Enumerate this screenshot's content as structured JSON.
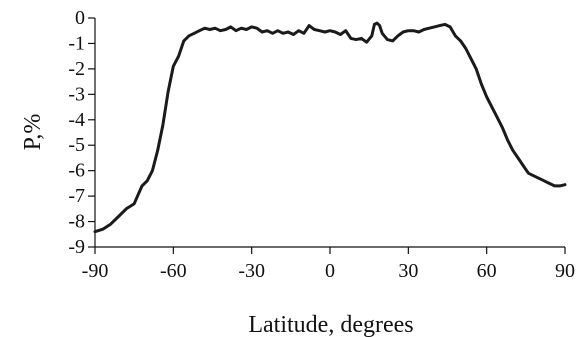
{
  "chart_data": {
    "type": "line",
    "xlabel": "Latitude, degrees",
    "ylabel": "P,%",
    "xlim": [
      -90,
      90
    ],
    "ylim": [
      -9,
      0
    ],
    "xticks": [
      -90,
      -60,
      -30,
      0,
      30,
      60,
      90
    ],
    "yticks": [
      0,
      -1,
      -2,
      -3,
      -4,
      -5,
      -6,
      -7,
      -8,
      -9
    ],
    "grid": false,
    "series": [
      {
        "color": "#1a1a1a",
        "x": [
          -90,
          -87,
          -84,
          -81,
          -78,
          -75,
          -72,
          -70,
          -68,
          -66,
          -64,
          -62,
          -60,
          -58,
          -56,
          -54,
          -52,
          -50,
          -48,
          -46,
          -44,
          -42,
          -40,
          -38,
          -36,
          -34,
          -32,
          -30,
          -28,
          -26,
          -24,
          -22,
          -20,
          -18,
          -16,
          -14,
          -12,
          -10,
          -8,
          -6,
          -4,
          -2,
          0,
          2,
          4,
          6,
          8,
          10,
          12,
          14,
          16,
          17,
          18,
          19,
          20,
          22,
          24,
          26,
          28,
          30,
          32,
          34,
          36,
          38,
          40,
          42,
          44,
          46,
          48,
          50,
          52,
          54,
          56,
          58,
          60,
          62,
          64,
          66,
          68,
          70,
          72,
          74,
          76,
          78,
          80,
          82,
          84,
          86,
          88,
          90
        ],
        "y": [
          -8.4,
          -8.3,
          -8.1,
          -7.8,
          -7.5,
          -7.3,
          -6.6,
          -6.4,
          -6.0,
          -5.2,
          -4.2,
          -2.9,
          -1.9,
          -1.5,
          -0.9,
          -0.7,
          -0.6,
          -0.5,
          -0.4,
          -0.45,
          -0.4,
          -0.5,
          -0.45,
          -0.35,
          -0.5,
          -0.4,
          -0.45,
          -0.35,
          -0.4,
          -0.55,
          -0.5,
          -0.6,
          -0.5,
          -0.6,
          -0.55,
          -0.65,
          -0.5,
          -0.6,
          -0.3,
          -0.45,
          -0.5,
          -0.55,
          -0.5,
          -0.55,
          -0.65,
          -0.5,
          -0.8,
          -0.85,
          -0.8,
          -0.95,
          -0.7,
          -0.25,
          -0.2,
          -0.3,
          -0.6,
          -0.85,
          -0.9,
          -0.7,
          -0.55,
          -0.5,
          -0.5,
          -0.55,
          -0.45,
          -0.4,
          -0.35,
          -0.3,
          -0.25,
          -0.35,
          -0.7,
          -0.9,
          -1.2,
          -1.6,
          -2.0,
          -2.6,
          -3.1,
          -3.5,
          -3.9,
          -4.3,
          -4.8,
          -5.2,
          -5.5,
          -5.8,
          -6.1,
          -6.2,
          -6.3,
          -6.4,
          -6.5,
          -6.6,
          -6.6,
          -6.55
        ]
      }
    ]
  }
}
